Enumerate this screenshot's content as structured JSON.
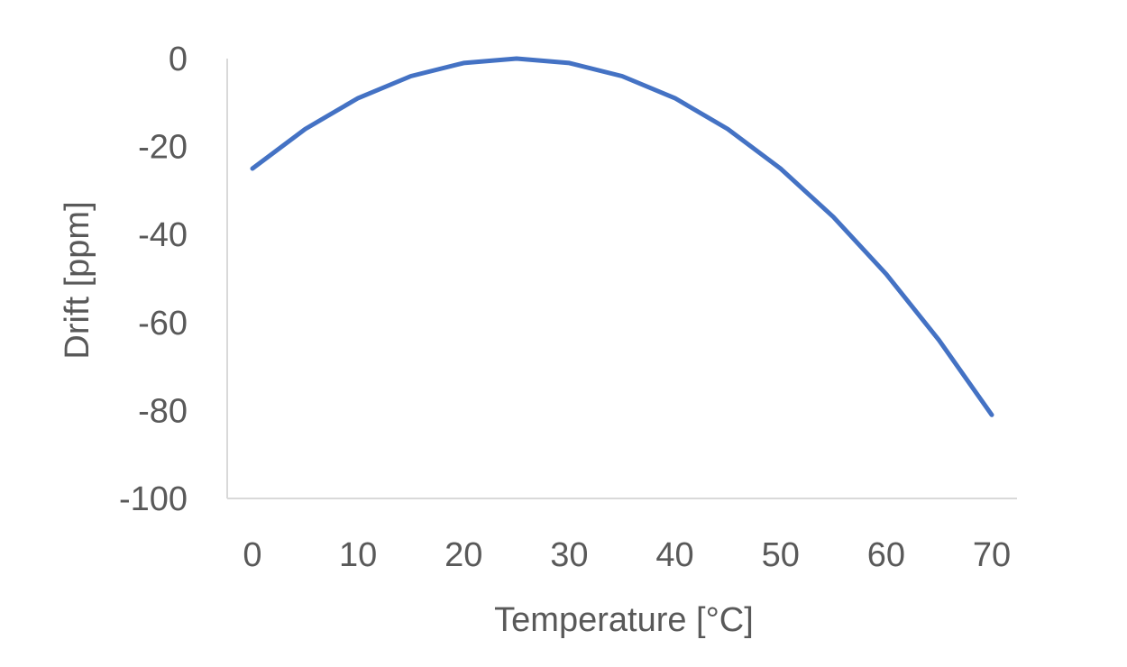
{
  "chart_data": {
    "type": "line",
    "title": "",
    "xlabel": "Temperature [°C]",
    "ylabel": "Drift [ppm]",
    "xlim": [
      0,
      70
    ],
    "ylim": [
      -100,
      0
    ],
    "x_ticks": [
      0,
      10,
      20,
      30,
      40,
      50,
      60,
      70
    ],
    "y_ticks": [
      0,
      -20,
      -40,
      -60,
      -80,
      -100
    ],
    "grid": false,
    "legend": "none",
    "series": [
      {
        "color": "#4472c4",
        "x": [
          0,
          5,
          10,
          15,
          20,
          25,
          30,
          35,
          40,
          45,
          50,
          55,
          60,
          65,
          70
        ],
        "y": [
          -25,
          -16,
          -9,
          -4,
          -1,
          0,
          -1,
          -4,
          -9,
          -16,
          -25,
          -36,
          -49,
          -64,
          -81
        ]
      }
    ]
  }
}
